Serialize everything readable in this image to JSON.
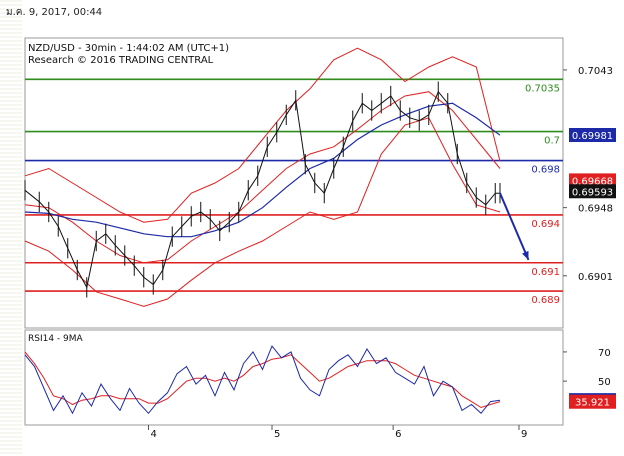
{
  "timestamp": "ม.ค. 9, 2017, 00:44",
  "chart_data": {
    "type": "line",
    "title": "NZD/USD - 30min - 1:44:02 AM (UTC+1)",
    "subtitle": "Research © 2016 TRADING CENTRAL",
    "price_axis": {
      "ylim": [
        0.6865,
        0.7065
      ],
      "ticks": [
        0.7043,
        0.6948,
        0.6901
      ]
    },
    "x_axis": {
      "xlim": [
        0,
        100
      ],
      "ticks": [
        {
          "x": 26,
          "label": "4"
        },
        {
          "x": 52,
          "label": "5"
        },
        {
          "x": 77.5,
          "label": "6"
        },
        {
          "x": 104,
          "label": "9"
        }
      ]
    },
    "levels": [
      {
        "label": "0.7035",
        "value": 0.70365,
        "color": "#2e8b1e"
      },
      {
        "label": "0.7",
        "value": 0.70005,
        "color": "#2e8b1e"
      },
      {
        "label": "0.698",
        "value": 0.69805,
        "color": "#1c2aa8"
      },
      {
        "label": "0.694",
        "value": 0.6943,
        "color": "#e02020"
      },
      {
        "label": "0.691",
        "value": 0.691,
        "color": "#e02020"
      },
      {
        "label": "0.689",
        "value": 0.68905,
        "color": "#e02020"
      }
    ],
    "price_badges": [
      {
        "label": "0.69981",
        "value": 0.69981,
        "bg": "#1c2aa8",
        "fg": "#ffffff"
      },
      {
        "label": "0.69668",
        "value": 0.69668,
        "bg": "#e02020",
        "fg": "#ffffff"
      },
      {
        "label": "0.69593",
        "value": 0.69593,
        "bg": "#111111",
        "fg": "#ffffff"
      }
    ],
    "forecast_arrow": {
      "from": [
        100,
        0.6958
      ],
      "to": [
        106,
        0.6912
      ],
      "color": "#1c2aa8"
    },
    "series": [
      {
        "kind": "close",
        "x": [
          0,
          3,
          5,
          7,
          9,
          11,
          13,
          15,
          17,
          19,
          21,
          23,
          25,
          27,
          29,
          31,
          33,
          35,
          37,
          39,
          41,
          43,
          45,
          47,
          49,
          51,
          53,
          55,
          57,
          59,
          61,
          63,
          65,
          67,
          69,
          71,
          73,
          75,
          77,
          79,
          81,
          83,
          85,
          87,
          89,
          91,
          93,
          95,
          97,
          99,
          100
        ],
        "values": [
          0.696,
          0.6952,
          0.6945,
          0.6935,
          0.692,
          0.6905,
          0.6893,
          0.6925,
          0.693,
          0.6922,
          0.6915,
          0.6908,
          0.69,
          0.6895,
          0.6905,
          0.6928,
          0.6935,
          0.6942,
          0.6945,
          0.694,
          0.6932,
          0.6938,
          0.6945,
          0.696,
          0.697,
          0.699,
          0.7,
          0.7012,
          0.7022,
          0.6978,
          0.6965,
          0.6958,
          0.6975,
          0.699,
          0.7008,
          0.702,
          0.7015,
          0.702,
          0.7025,
          0.7015,
          0.701,
          0.7008,
          0.7012,
          0.7028,
          0.702,
          0.6985,
          0.6965,
          0.6955,
          0.695,
          0.6958,
          0.6958
        ],
        "color": "#111111"
      },
      {
        "kind": "ma",
        "x": [
          0,
          5,
          10,
          15,
          20,
          25,
          30,
          35,
          40,
          45,
          50,
          55,
          60,
          65,
          70,
          75,
          80,
          85,
          90,
          95,
          100
        ],
        "values": [
          0.6945,
          0.6944,
          0.694,
          0.6938,
          0.6934,
          0.693,
          0.6928,
          0.6928,
          0.6932,
          0.6938,
          0.6948,
          0.6962,
          0.6975,
          0.6982,
          0.6995,
          0.7005,
          0.7012,
          0.7018,
          0.702,
          0.701,
          0.6998
        ],
        "color": "#1c2aa8"
      },
      {
        "kind": "bollinger",
        "x": [
          0,
          5,
          10,
          15,
          20,
          25,
          30,
          35,
          40,
          45,
          50,
          55,
          60,
          65,
          70,
          75,
          80,
          85,
          90,
          95,
          100
        ],
        "upper": [
          0.697,
          0.6975,
          0.6965,
          0.6955,
          0.6945,
          0.6938,
          0.694,
          0.6958,
          0.6965,
          0.6975,
          0.6995,
          0.7015,
          0.703,
          0.705,
          0.7058,
          0.705,
          0.7035,
          0.7045,
          0.7052,
          0.7045,
          0.698
        ],
        "middle": [
          0.695,
          0.6948,
          0.6938,
          0.6925,
          0.6915,
          0.691,
          0.6912,
          0.6925,
          0.6935,
          0.6945,
          0.696,
          0.6975,
          0.6985,
          0.699,
          0.7002,
          0.7015,
          0.7025,
          0.7028,
          0.7015,
          0.6995,
          0.6975
        ],
        "lower": [
          0.6925,
          0.6918,
          0.6905,
          0.689,
          0.6885,
          0.688,
          0.6885,
          0.6898,
          0.691,
          0.6918,
          0.6925,
          0.6935,
          0.6945,
          0.694,
          0.6945,
          0.6985,
          0.7005,
          0.701,
          0.6978,
          0.695,
          0.6945
        ],
        "color": "#e02020"
      }
    ],
    "rsi": {
      "title": "RSI14 - 9MA",
      "ylim": [
        20,
        85
      ],
      "ticks": [
        70,
        50
      ],
      "x": [
        0,
        2,
        4,
        6,
        8,
        10,
        12,
        14,
        16,
        18,
        20,
        22,
        24,
        26,
        28,
        30,
        32,
        34,
        36,
        38,
        40,
        42,
        44,
        46,
        48,
        50,
        52,
        54,
        56,
        58,
        60,
        62,
        64,
        66,
        68,
        70,
        72,
        74,
        76,
        78,
        80,
        82,
        84,
        86,
        88,
        90,
        92,
        94,
        96,
        98,
        100
      ],
      "rsi_values": [
        68,
        60,
        45,
        30,
        40,
        28,
        42,
        33,
        48,
        38,
        30,
        45,
        35,
        28,
        36,
        42,
        55,
        60,
        48,
        54,
        40,
        56,
        44,
        62,
        70,
        58,
        74,
        66,
        70,
        52,
        44,
        40,
        58,
        64,
        68,
        60,
        72,
        62,
        66,
        56,
        52,
        48,
        60,
        40,
        50,
        46,
        30,
        34,
        28,
        36,
        37
      ],
      "ma_values": [
        70,
        62,
        52,
        40,
        38,
        34,
        37,
        38,
        40,
        40,
        38,
        38,
        38,
        35,
        35,
        38,
        44,
        50,
        52,
        52,
        50,
        52,
        50,
        54,
        60,
        62,
        65,
        66,
        68,
        62,
        56,
        50,
        52,
        56,
        60,
        62,
        64,
        64,
        64,
        62,
        58,
        54,
        52,
        50,
        48,
        46,
        40,
        36,
        32,
        34,
        36
      ],
      "badges": [
        {
          "label": "37.0063",
          "value": 37.0063,
          "bg": "#1c2aa8",
          "fg": "#ffffff"
        },
        {
          "label": "35.921",
          "value": 35.921,
          "bg": "#e02020",
          "fg": "#ffffff"
        }
      ]
    }
  }
}
